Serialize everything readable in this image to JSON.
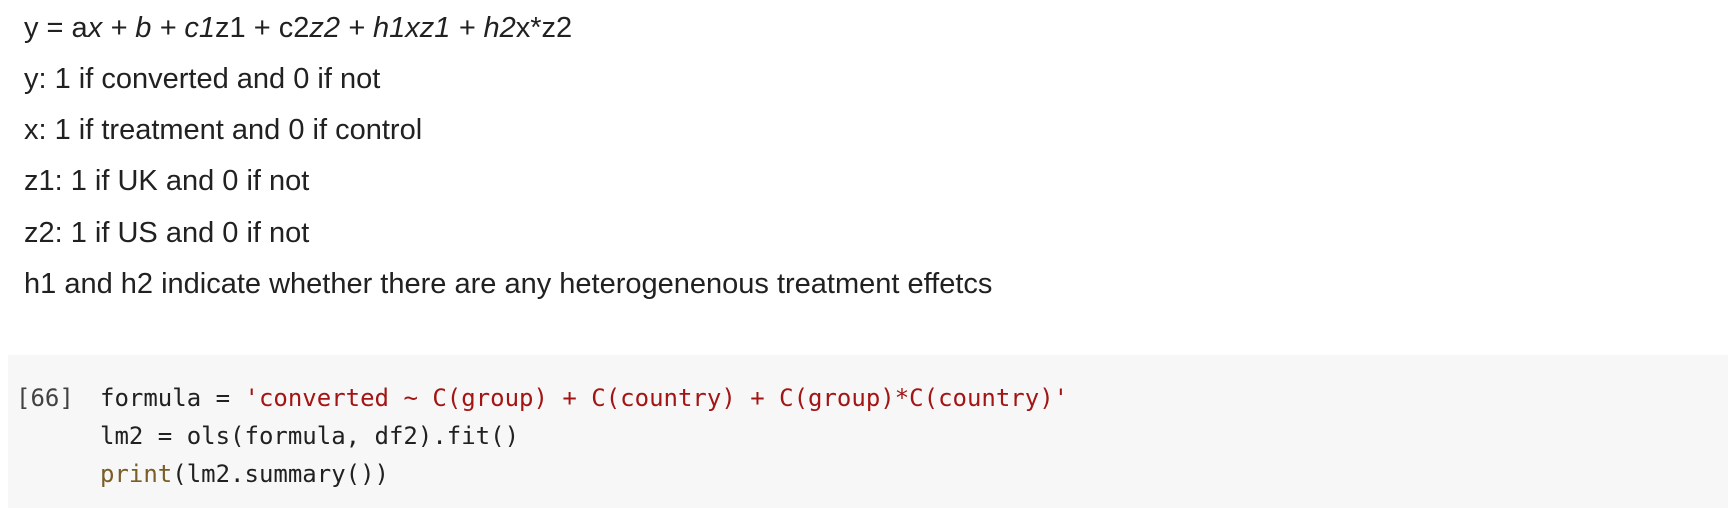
{
  "markdown": {
    "equation": {
      "p1": "y = a",
      "p2": "x + b + c1",
      "p3": "z1 + c2",
      "p4": "z2 + h1xz1 + h2",
      "p5": "x*z2"
    },
    "lines": [
      "y: 1 if converted and 0 if not",
      "x: 1 if treatment and 0 if control",
      "z1: 1 if UK and 0 if not",
      "z2: 1 if US and 0 if not",
      "h1 and h2 indicate whether there are any heterogenenous treatment effetcs"
    ]
  },
  "code_cell": {
    "execution_count": "[66]",
    "line1": {
      "lhs": "formula = ",
      "string": "'converted ~ C(group) + C(country) + C(group)*C(country)'"
    },
    "line2": "lm2 = ols(formula, df2).fit()",
    "line3": {
      "builtin": "print",
      "args": "(lm2.summary())"
    }
  }
}
